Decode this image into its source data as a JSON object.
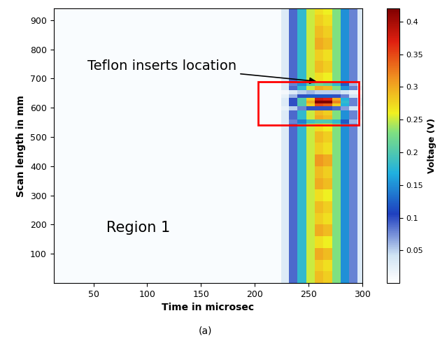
{
  "chart_data": {
    "type": "heatmap",
    "x_label": "Time in microsec",
    "y_label": "Scan length in mm",
    "colorbar_label": "Voltage (V)",
    "annotations": [
      "Teflon inserts location",
      "Region 1"
    ],
    "caption": "(a)",
    "xlim": [
      13,
      300
    ],
    "ylim": [
      0,
      940
    ],
    "xticks": [
      50,
      100,
      150,
      200,
      250,
      300
    ],
    "yticks": [
      100,
      200,
      300,
      400,
      500,
      600,
      700,
      800,
      900
    ],
    "color_range": [
      0,
      0.42
    ],
    "color_ticks": [
      0.05,
      0.1,
      0.15,
      0.2,
      0.25,
      0.3,
      0.35,
      0.4
    ],
    "highlight_box": {
      "x": [
        203,
        297
      ],
      "y": [
        540,
        690
      ]
    },
    "x_edges": [
      13,
      225,
      232,
      240,
      248,
      256,
      264,
      272,
      280,
      288,
      296,
      300
    ],
    "y_edges": [
      0,
      40,
      80,
      120,
      160,
      200,
      240,
      280,
      320,
      360,
      400,
      440,
      480,
      520,
      545,
      560,
      575,
      590,
      605,
      615,
      625,
      635,
      645,
      660,
      675,
      690,
      720,
      760,
      800,
      840,
      880,
      920,
      940
    ],
    "cells": [
      [
        0.005,
        0.03,
        0.09,
        0.18,
        0.25,
        0.29,
        0.28,
        0.23,
        0.15,
        0.08,
        0.03
      ],
      [
        0.005,
        0.03,
        0.09,
        0.18,
        0.25,
        0.28,
        0.27,
        0.23,
        0.15,
        0.08,
        0.03
      ],
      [
        0.005,
        0.03,
        0.09,
        0.18,
        0.25,
        0.3,
        0.29,
        0.23,
        0.15,
        0.08,
        0.03
      ],
      [
        0.005,
        0.03,
        0.09,
        0.18,
        0.25,
        0.27,
        0.26,
        0.23,
        0.15,
        0.08,
        0.03
      ],
      [
        0.005,
        0.03,
        0.09,
        0.18,
        0.25,
        0.3,
        0.29,
        0.23,
        0.15,
        0.08,
        0.03
      ],
      [
        0.005,
        0.03,
        0.09,
        0.18,
        0.25,
        0.28,
        0.27,
        0.23,
        0.15,
        0.08,
        0.03
      ],
      [
        0.005,
        0.03,
        0.09,
        0.18,
        0.25,
        0.29,
        0.28,
        0.23,
        0.15,
        0.08,
        0.03
      ],
      [
        0.005,
        0.03,
        0.09,
        0.18,
        0.25,
        0.27,
        0.26,
        0.23,
        0.15,
        0.08,
        0.03
      ],
      [
        0.005,
        0.03,
        0.09,
        0.18,
        0.25,
        0.3,
        0.29,
        0.23,
        0.15,
        0.08,
        0.03
      ],
      [
        0.005,
        0.03,
        0.09,
        0.18,
        0.25,
        0.29,
        0.28,
        0.23,
        0.15,
        0.08,
        0.03
      ],
      [
        0.005,
        0.03,
        0.09,
        0.18,
        0.25,
        0.31,
        0.3,
        0.23,
        0.15,
        0.08,
        0.03
      ],
      [
        0.005,
        0.03,
        0.09,
        0.18,
        0.25,
        0.28,
        0.27,
        0.23,
        0.15,
        0.08,
        0.03
      ],
      [
        0.005,
        0.03,
        0.09,
        0.18,
        0.25,
        0.29,
        0.28,
        0.23,
        0.15,
        0.08,
        0.03
      ],
      [
        0.005,
        0.03,
        0.09,
        0.18,
        0.25,
        0.27,
        0.26,
        0.23,
        0.15,
        0.08,
        0.03
      ],
      [
        0.005,
        0.03,
        0.08,
        0.14,
        0.19,
        0.2,
        0.2,
        0.18,
        0.12,
        0.06,
        0.02
      ],
      [
        0.005,
        0.03,
        0.09,
        0.18,
        0.25,
        0.3,
        0.29,
        0.23,
        0.15,
        0.08,
        0.03
      ],
      [
        0.005,
        0.03,
        0.09,
        0.18,
        0.25,
        0.29,
        0.28,
        0.23,
        0.15,
        0.08,
        0.03
      ],
      [
        0.005,
        0.02,
        0.05,
        0.08,
        0.1,
        0.1,
        0.1,
        0.09,
        0.07,
        0.04,
        0.02
      ],
      [
        0.005,
        0.03,
        0.1,
        0.2,
        0.28,
        0.35,
        0.34,
        0.28,
        0.17,
        0.08,
        0.03
      ],
      [
        0.005,
        0.03,
        0.1,
        0.2,
        0.3,
        0.42,
        0.42,
        0.32,
        0.18,
        0.08,
        0.03
      ],
      [
        0.005,
        0.03,
        0.1,
        0.2,
        0.28,
        0.38,
        0.37,
        0.3,
        0.17,
        0.08,
        0.03
      ],
      [
        0.005,
        0.02,
        0.06,
        0.1,
        0.12,
        0.12,
        0.12,
        0.1,
        0.08,
        0.04,
        0.02
      ],
      [
        0.005,
        0.01,
        0.03,
        0.05,
        0.06,
        0.05,
        0.05,
        0.05,
        0.04,
        0.02,
        0.01
      ],
      [
        0.005,
        0.03,
        0.09,
        0.18,
        0.25,
        0.3,
        0.29,
        0.23,
        0.15,
        0.08,
        0.03
      ],
      [
        0.005,
        0.03,
        0.08,
        0.15,
        0.2,
        0.22,
        0.21,
        0.18,
        0.12,
        0.06,
        0.02
      ],
      [
        0.005,
        0.03,
        0.09,
        0.18,
        0.25,
        0.27,
        0.26,
        0.23,
        0.15,
        0.08,
        0.03
      ],
      [
        0.005,
        0.03,
        0.09,
        0.18,
        0.25,
        0.29,
        0.28,
        0.23,
        0.15,
        0.08,
        0.03
      ],
      [
        0.005,
        0.03,
        0.09,
        0.18,
        0.25,
        0.28,
        0.27,
        0.23,
        0.15,
        0.08,
        0.03
      ],
      [
        0.005,
        0.03,
        0.09,
        0.18,
        0.25,
        0.3,
        0.29,
        0.23,
        0.15,
        0.08,
        0.03
      ],
      [
        0.005,
        0.03,
        0.09,
        0.18,
        0.25,
        0.29,
        0.28,
        0.23,
        0.15,
        0.08,
        0.03
      ],
      [
        0.005,
        0.03,
        0.09,
        0.18,
        0.25,
        0.28,
        0.27,
        0.23,
        0.15,
        0.08,
        0.03
      ],
      [
        0.005,
        0.03,
        0.09,
        0.18,
        0.25,
        0.27,
        0.26,
        0.23,
        0.15,
        0.08,
        0.03
      ]
    ]
  }
}
